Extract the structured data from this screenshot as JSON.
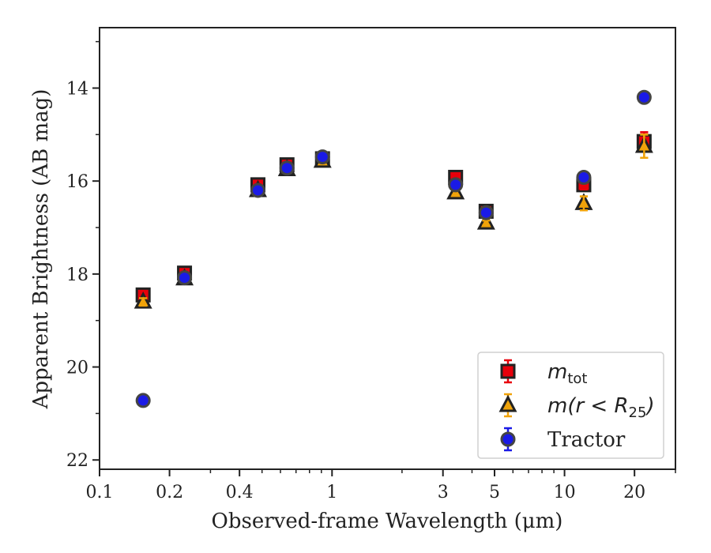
{
  "chart_data": {
    "type": "scatter",
    "xlabel": "Observed-frame Wavelength (μm)",
    "ylabel": "Apparent Brightness (AB mag)",
    "x_scale": "log",
    "xlim": [
      0.1,
      30
    ],
    "ylim": [
      22.2,
      12.7
    ],
    "y_inverted": true,
    "x_ticks": [
      0.1,
      0.2,
      0.4,
      1,
      3,
      5,
      10,
      20
    ],
    "x_tick_labels": [
      "0.1",
      "0.2",
      "0.4",
      "1",
      "3",
      "5",
      "10",
      "20"
    ],
    "y_ticks": [
      14,
      16,
      18,
      20,
      22
    ],
    "y_tick_labels": [
      "14",
      "16",
      "18",
      "20",
      "22"
    ],
    "legend_position": "lower-right",
    "series": [
      {
        "name": "m_tot",
        "legend_main": "m",
        "legend_sub": "tot",
        "marker": "square",
        "face_color": "#e8000b",
        "error_color": "#e8000b",
        "points": [
          {
            "x": 0.154,
            "y": 18.45,
            "err": 0.08
          },
          {
            "x": 0.232,
            "y": 17.98,
            "err": 0.05
          },
          {
            "x": 0.48,
            "y": 16.08,
            "err": 0.05
          },
          {
            "x": 0.64,
            "y": 15.65,
            "err": 0.05
          },
          {
            "x": 0.91,
            "y": 15.52,
            "err": 0.05
          },
          {
            "x": 3.4,
            "y": 15.92,
            "err": 0.05
          },
          {
            "x": 4.6,
            "y": 16.65,
            "err": 0.05
          },
          {
            "x": 12.1,
            "y": 16.08,
            "err": 0.1
          },
          {
            "x": 22.0,
            "y": 15.15,
            "err": 0.2
          }
        ]
      },
      {
        "name": "m(r < R25)",
        "legend_main": "m(r < R",
        "legend_sub": "25",
        "legend_tail": ")",
        "marker": "triangle",
        "face_color": "#f0a30a",
        "error_color": "#f0a30a",
        "points": [
          {
            "x": 0.154,
            "y": 18.6,
            "err": 0.08
          },
          {
            "x": 0.232,
            "y": 18.1,
            "err": 0.05
          },
          {
            "x": 0.48,
            "y": 16.2,
            "err": 0.05
          },
          {
            "x": 0.64,
            "y": 15.75,
            "err": 0.05
          },
          {
            "x": 0.91,
            "y": 15.57,
            "err": 0.05
          },
          {
            "x": 3.4,
            "y": 16.25,
            "err": 0.05
          },
          {
            "x": 4.6,
            "y": 16.9,
            "err": 0.05
          },
          {
            "x": 12.1,
            "y": 16.48,
            "err": 0.15
          },
          {
            "x": 22.0,
            "y": 15.25,
            "err": 0.25
          }
        ]
      },
      {
        "name": "Tractor",
        "legend_main": "Tractor",
        "marker": "circle",
        "face_color": "#1a1ae6",
        "error_color": "#1a1ae6",
        "points": [
          {
            "x": 0.154,
            "y": 20.72,
            "err": 0.06
          },
          {
            "x": 0.232,
            "y": 18.08,
            "err": 0.05
          },
          {
            "x": 0.48,
            "y": 16.2,
            "err": 0.05
          },
          {
            "x": 0.64,
            "y": 15.72,
            "err": 0.05
          },
          {
            "x": 0.91,
            "y": 15.48,
            "err": 0.05
          },
          {
            "x": 3.4,
            "y": 16.08,
            "err": 0.05
          },
          {
            "x": 4.6,
            "y": 16.68,
            "err": 0.05
          },
          {
            "x": 12.1,
            "y": 15.92,
            "err": 0.05
          },
          {
            "x": 22.0,
            "y": 14.2,
            "err": 0.05
          }
        ]
      }
    ]
  }
}
